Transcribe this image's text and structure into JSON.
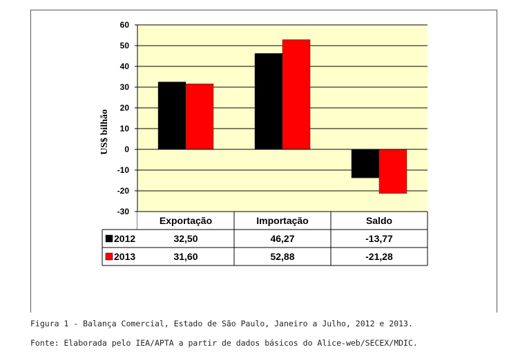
{
  "chart_data": {
    "type": "bar",
    "ylabel": "US$ bilhão",
    "ylim": [
      -30,
      60
    ],
    "yticks": [
      60,
      50,
      40,
      30,
      20,
      10,
      0,
      -10,
      -20,
      -30
    ],
    "categories": [
      "Exportação",
      "Importação",
      "Saldo"
    ],
    "series": [
      {
        "name": "2012",
        "color": "#000000",
        "values": [
          32.5,
          46.27,
          -13.77
        ],
        "labels": [
          "32,50",
          "46,27",
          "-13,77"
        ]
      },
      {
        "name": "2013",
        "color": "#ff0000",
        "values": [
          31.6,
          52.88,
          -21.28
        ],
        "labels": [
          "31,60",
          "52,88",
          "-21,28"
        ]
      }
    ],
    "plot_background": "#ffffcc",
    "grid": true,
    "legend": "data-table"
  },
  "caption": {
    "figure": "Figura 1 - Balança Comercial, Estado de São Paulo, Janeiro a Julho, 2012 e 2013.",
    "source": "Fonte: Elaborada pelo IEA/APTA a partir de dados básicos do Alice-web/SECEX/MDIC."
  }
}
